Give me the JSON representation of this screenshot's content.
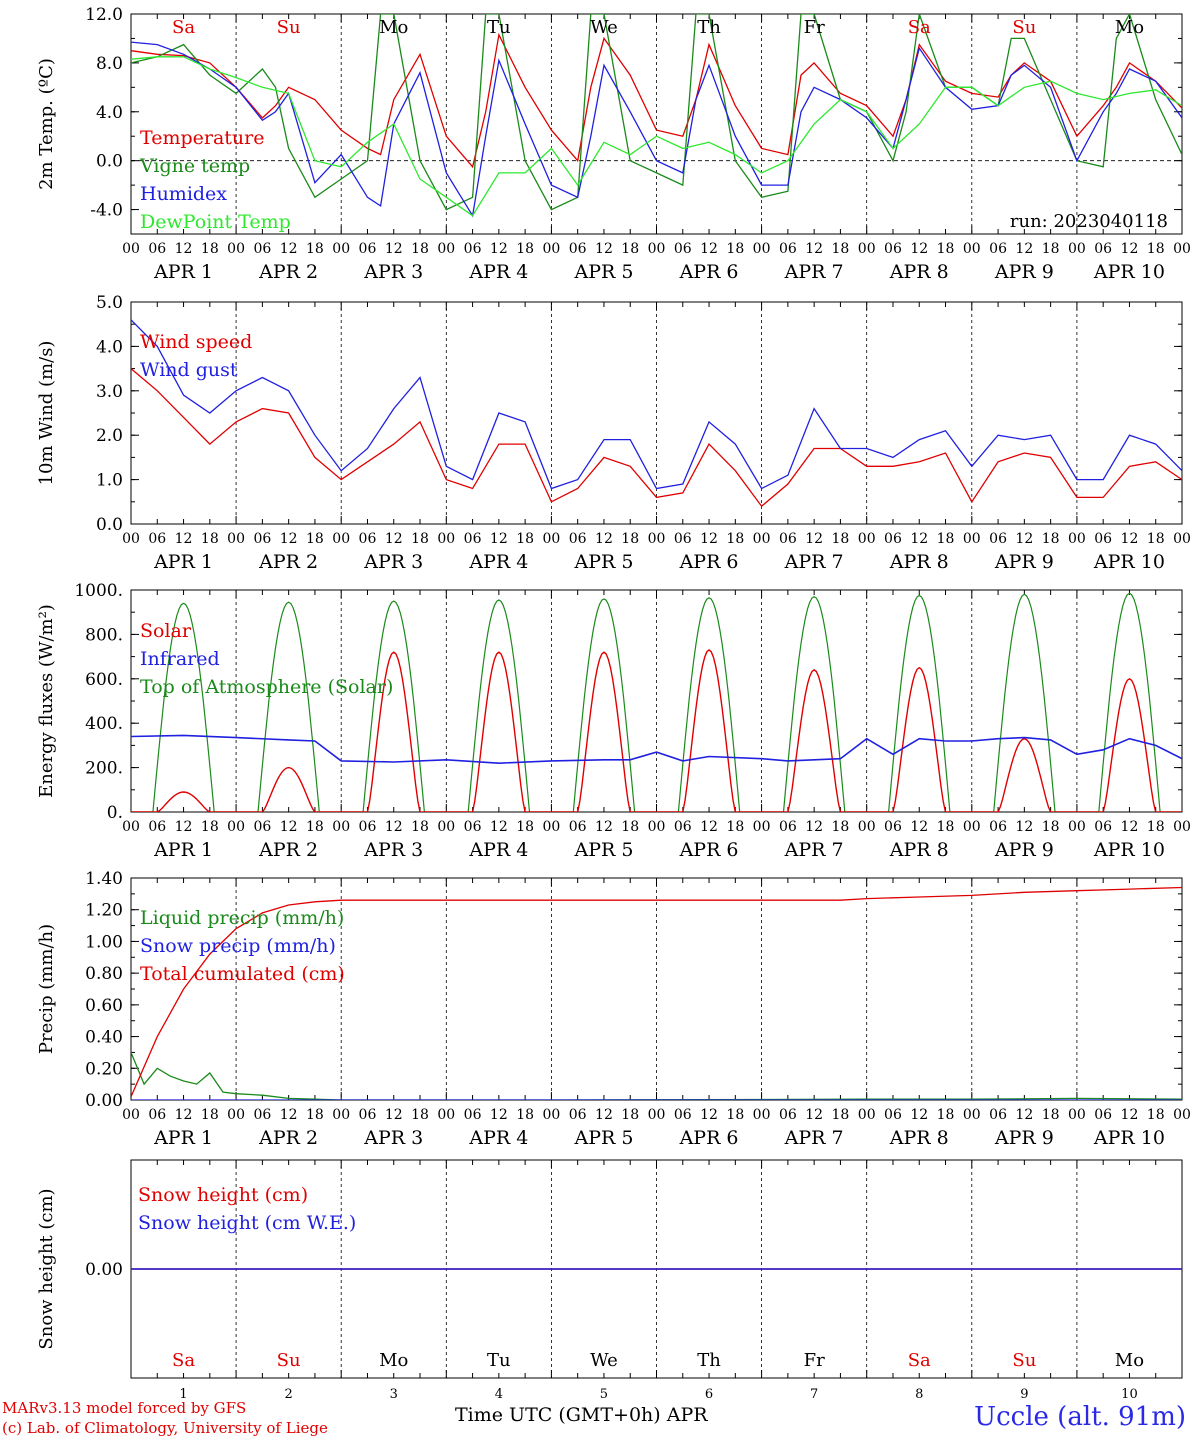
{
  "run_label": "run: 2023040118",
  "footer": {
    "model": "MARv3.13 model forced by GFS",
    "credit": "(c) Lab. of Climatology, University of Liege",
    "axis_title": "Time UTC (GMT+0h) APR",
    "station": "Uccle (alt. 91m)"
  },
  "time_axis": {
    "hour_ticks": [
      "00",
      "06",
      "12",
      "18"
    ],
    "end_tick": "00",
    "days": [
      "APR  1",
      "APR  2",
      "APR  3",
      "APR  4",
      "APR  5",
      "APR  6",
      "APR  7",
      "APR  8",
      "APR  9",
      "APR 10"
    ],
    "day_numbers": [
      "1",
      "2",
      "3",
      "4",
      "5",
      "6",
      "7",
      "8",
      "9",
      "10"
    ],
    "weekdays": [
      "Sa",
      "Su",
      "Mo",
      "Tu",
      "We",
      "Th",
      "Fr",
      "Sa",
      "Su",
      "Mo"
    ],
    "weekend_color": "#e00000"
  },
  "chart_data": [
    {
      "type": "line",
      "ylabel": "2m Temp. (ºC)",
      "ylim": [
        -6,
        12
      ],
      "yticks": [
        "12.0",
        "8.0",
        "4.0",
        "0.0",
        "-4.0"
      ],
      "ytick_values": [
        12,
        8,
        4,
        0,
        -4
      ],
      "zero_line": true,
      "x_unit": "hours since APR 1 00 UTC",
      "series": [
        {
          "name": "Temperature",
          "color": "#e00000",
          "x": [
            0,
            6,
            12,
            18,
            24,
            30,
            33,
            36,
            42,
            48,
            54,
            57,
            60,
            66,
            72,
            78,
            81,
            84,
            90,
            96,
            102,
            105,
            108,
            114,
            120,
            126,
            129,
            132,
            138,
            144,
            150,
            153,
            156,
            162,
            168,
            174,
            177,
            180,
            186,
            192,
            198,
            201,
            204,
            210,
            216,
            222,
            225,
            228,
            234,
            240
          ],
          "y": [
            9,
            8.7,
            8.6,
            8,
            6,
            3.5,
            4.5,
            6,
            5,
            2.5,
            1,
            0.5,
            5,
            8.7,
            2,
            -0.5,
            4,
            10.3,
            6,
            2.5,
            0,
            6,
            10,
            7,
            2.5,
            2,
            5,
            9.5,
            4.5,
            1,
            0.5,
            7,
            8,
            5.5,
            4.5,
            2,
            5,
            9.5,
            6.5,
            5.5,
            5.2,
            7,
            8,
            6.5,
            2,
            4.5,
            6,
            8,
            6.5,
            4.3
          ]
        },
        {
          "name": "Vigne temp",
          "color": "#1a8a1a",
          "x": [
            0,
            6,
            12,
            18,
            24,
            30,
            33,
            36,
            42,
            48,
            54,
            57,
            60,
            66,
            72,
            78,
            81,
            84,
            90,
            96,
            102,
            105,
            108,
            114,
            120,
            126,
            129,
            132,
            138,
            144,
            150,
            153,
            156,
            162,
            168,
            174,
            177,
            180,
            186,
            192,
            198,
            201,
            204,
            210,
            216,
            222,
            225,
            228,
            234,
            240
          ],
          "y": [
            8,
            8.5,
            9.5,
            7,
            5.5,
            7.5,
            6,
            1,
            -3,
            -1.5,
            0,
            12,
            12,
            0,
            -4,
            -3,
            12,
            12,
            0,
            -4,
            -3,
            12,
            12,
            0,
            -1,
            -2,
            12,
            12,
            0,
            -3,
            -2.5,
            12,
            12,
            5,
            4,
            0,
            4,
            12,
            6,
            6,
            4.5,
            10,
            10,
            5,
            0,
            -0.5,
            10,
            12,
            5,
            0.5
          ]
        },
        {
          "name": "Humidex",
          "color": "#2020e0",
          "x": [
            0,
            6,
            12,
            18,
            24,
            30,
            33,
            36,
            42,
            48,
            54,
            57,
            60,
            66,
            72,
            78,
            81,
            84,
            90,
            96,
            102,
            105,
            108,
            114,
            120,
            126,
            129,
            132,
            138,
            144,
            150,
            153,
            156,
            162,
            168,
            174,
            177,
            180,
            186,
            192,
            198,
            201,
            204,
            210,
            216,
            222,
            225,
            228,
            234,
            240
          ],
          "y": [
            9.7,
            9.5,
            8.7,
            7.5,
            6,
            3.3,
            4,
            5.5,
            -1.8,
            0.5,
            -3,
            -3.7,
            3,
            7.2,
            -1,
            -4.5,
            2,
            8.2,
            3,
            -2,
            -3,
            2,
            7.8,
            4,
            0,
            -1,
            5,
            7.8,
            2,
            -2,
            -2,
            4,
            6,
            5,
            3.5,
            1,
            5,
            9.2,
            6,
            4.2,
            4.5,
            7,
            7.8,
            6,
            0,
            4,
            5.5,
            7.5,
            6.5,
            3.5
          ]
        },
        {
          "name": "DewPoint Temp",
          "color": "#2ee82e",
          "x": [
            0,
            6,
            12,
            18,
            24,
            30,
            36,
            42,
            48,
            54,
            60,
            66,
            72,
            78,
            84,
            90,
            96,
            102,
            108,
            114,
            120,
            126,
            132,
            138,
            144,
            150,
            156,
            162,
            168,
            174,
            180,
            186,
            192,
            198,
            204,
            210,
            216,
            222,
            228,
            234,
            240
          ],
          "y": [
            8.3,
            8.5,
            8.5,
            7.5,
            6.8,
            6,
            5.5,
            0,
            -0.5,
            1.5,
            3,
            -1.5,
            -3,
            -4.5,
            -1,
            -1,
            1,
            -2,
            1.5,
            0.5,
            2,
            1,
            1.5,
            0.5,
            -1,
            0,
            3,
            5,
            4,
            1,
            3,
            6,
            6,
            4.5,
            6,
            6.5,
            5.5,
            5,
            5.5,
            5.8,
            4.5
          ]
        }
      ],
      "legend": [
        "Temperature",
        "Vigne temp",
        "Humidex",
        "DewPoint Temp"
      ],
      "legend_placement": "left"
    },
    {
      "type": "line",
      "ylabel": "10m Wind (m/s)",
      "ylim": [
        0,
        5
      ],
      "yticks": [
        "5.0",
        "4.0",
        "3.0",
        "2.0",
        "1.0",
        "0.0"
      ],
      "ytick_values": [
        5,
        4,
        3,
        2,
        1,
        0
      ],
      "x_unit": "hours since APR 1 00 UTC",
      "series": [
        {
          "name": "Wind speed",
          "color": "#e00000",
          "x": [
            0,
            6,
            12,
            18,
            24,
            30,
            36,
            42,
            48,
            54,
            60,
            66,
            72,
            78,
            84,
            90,
            96,
            102,
            108,
            114,
            120,
            126,
            132,
            138,
            144,
            150,
            156,
            162,
            168,
            174,
            180,
            186,
            192,
            198,
            204,
            210,
            216,
            222,
            228,
            234,
            240
          ],
          "y": [
            3.5,
            3,
            2.4,
            1.8,
            2.3,
            2.6,
            2.5,
            1.5,
            1,
            1.4,
            1.8,
            2.3,
            1,
            0.8,
            1.8,
            1.8,
            0.5,
            0.8,
            1.5,
            1.3,
            0.6,
            0.7,
            1.8,
            1.2,
            0.4,
            0.9,
            1.7,
            1.7,
            1.3,
            1.3,
            1.4,
            1.6,
            0.5,
            1.4,
            1.6,
            1.5,
            0.6,
            0.6,
            1.3,
            1.4,
            1
          ]
        },
        {
          "name": "Wind gust",
          "color": "#2020e0",
          "x": [
            0,
            6,
            12,
            18,
            24,
            30,
            36,
            42,
            48,
            54,
            60,
            66,
            72,
            78,
            84,
            90,
            96,
            102,
            108,
            114,
            120,
            126,
            132,
            138,
            144,
            150,
            156,
            162,
            168,
            174,
            180,
            186,
            192,
            198,
            204,
            210,
            216,
            222,
            228,
            234,
            240
          ],
          "y": [
            4.6,
            4,
            2.9,
            2.5,
            3,
            3.3,
            3,
            2,
            1.2,
            1.7,
            2.6,
            3.3,
            1.3,
            1,
            2.5,
            2.3,
            0.8,
            1,
            1.9,
            1.9,
            0.8,
            0.9,
            2.3,
            1.8,
            0.8,
            1.1,
            2.6,
            1.7,
            1.7,
            1.5,
            1.9,
            2.1,
            1.3,
            2,
            1.9,
            2,
            1,
            1,
            2,
            1.8,
            1.2
          ]
        }
      ],
      "legend": [
        "Wind speed",
        "Wind gust"
      ],
      "legend_placement": "top-left"
    },
    {
      "type": "line",
      "ylabel": "Energy fluxes (W/m²)",
      "ylim": [
        0,
        1000
      ],
      "yticks": [
        "1000.",
        "800.",
        "600.",
        "400.",
        "200.",
        "0."
      ],
      "ytick_values": [
        1000,
        800,
        600,
        400,
        200,
        0
      ],
      "x_unit": "hours since APR 1 00 UTC",
      "solar_peaks": [
        90,
        200,
        720,
        720,
        720,
        730,
        640,
        650,
        330,
        600
      ],
      "toa_peaks": [
        940,
        945,
        950,
        955,
        960,
        965,
        970,
        975,
        980,
        985
      ],
      "infrared": {
        "x": [
          0,
          12,
          24,
          36,
          42,
          48,
          60,
          72,
          84,
          96,
          108,
          114,
          120,
          126,
          132,
          144,
          150,
          156,
          162,
          168,
          174,
          180,
          186,
          192,
          198,
          204,
          210,
          216,
          222,
          228,
          234,
          240
        ],
        "y": [
          340,
          345,
          335,
          325,
          320,
          230,
          225,
          235,
          220,
          230,
          235,
          235,
          270,
          230,
          250,
          240,
          230,
          235,
          240,
          330,
          260,
          330,
          320,
          320,
          330,
          335,
          325,
          260,
          280,
          330,
          300,
          240
        ]
      },
      "series_names": [
        "Solar",
        "Infrared",
        "Top of Atmosphere (Solar)"
      ],
      "series_colors": [
        "#e00000",
        "#2020e0",
        "#1a8a1a"
      ],
      "legend": [
        "Solar",
        "Infrared",
        "Top of Atmosphere (Solar)"
      ],
      "legend_placement": "left"
    },
    {
      "type": "line",
      "ylabel": "Precip (mm/h)",
      "ylim": [
        0,
        1.4
      ],
      "yticks": [
        "1.40",
        "1.20",
        "1.00",
        "0.80",
        "0.60",
        "0.40",
        "0.20",
        "0.00"
      ],
      "ytick_values": [
        1.4,
        1.2,
        1.0,
        0.8,
        0.6,
        0.4,
        0.2,
        0
      ],
      "x_unit": "hours since APR 1 00 UTC",
      "series": [
        {
          "name": "Liquid precip (mm/h)",
          "color": "#1a8a1a",
          "x": [
            0,
            3,
            6,
            9,
            12,
            15,
            18,
            21,
            24,
            30,
            36,
            42,
            48,
            60,
            96,
            168,
            192,
            216,
            240
          ],
          "y": [
            0.3,
            0.1,
            0.2,
            0.15,
            0.12,
            0.1,
            0.17,
            0.05,
            0.04,
            0.03,
            0.01,
            0.005,
            0,
            0,
            0,
            0.005,
            0.005,
            0.01,
            0.005
          ]
        },
        {
          "name": "Snow precip (mm/h)",
          "color": "#2020e0",
          "x": [
            0,
            240
          ],
          "y": [
            0,
            0
          ]
        },
        {
          "name": "Total cumulated (cm)",
          "color": "#e00000",
          "x": [
            0,
            6,
            12,
            18,
            24,
            30,
            36,
            42,
            48,
            60,
            72,
            96,
            120,
            144,
            162,
            168,
            180,
            192,
            204,
            216,
            228,
            240
          ],
          "y": [
            0.02,
            0.4,
            0.7,
            0.92,
            1.08,
            1.18,
            1.23,
            1.25,
            1.26,
            1.26,
            1.26,
            1.26,
            1.26,
            1.26,
            1.26,
            1.27,
            1.28,
            1.29,
            1.31,
            1.32,
            1.33,
            1.34
          ]
        }
      ],
      "legend": [
        "Liquid precip (mm/h)",
        "Snow precip (mm/h)",
        "Total cumulated (cm)"
      ],
      "legend_placement": "left"
    },
    {
      "type": "line",
      "ylabel": "Snow height (cm)",
      "ylim": [
        -1,
        1
      ],
      "yticks": [
        "0.00"
      ],
      "ytick_values": [
        0
      ],
      "x_unit": "hours since APR 1 00 UTC",
      "series": [
        {
          "name": "Snow height (cm)",
          "color": "#e00000",
          "x": [
            0,
            240
          ],
          "y": [
            0,
            0
          ]
        },
        {
          "name": "Snow height (cm W.E.)",
          "color": "#2020e0",
          "x": [
            0,
            240
          ],
          "y": [
            0,
            0
          ]
        }
      ],
      "legend": [
        "Snow height (cm)",
        "Snow height (cm W.E.)"
      ],
      "legend_placement": "top-left"
    }
  ]
}
